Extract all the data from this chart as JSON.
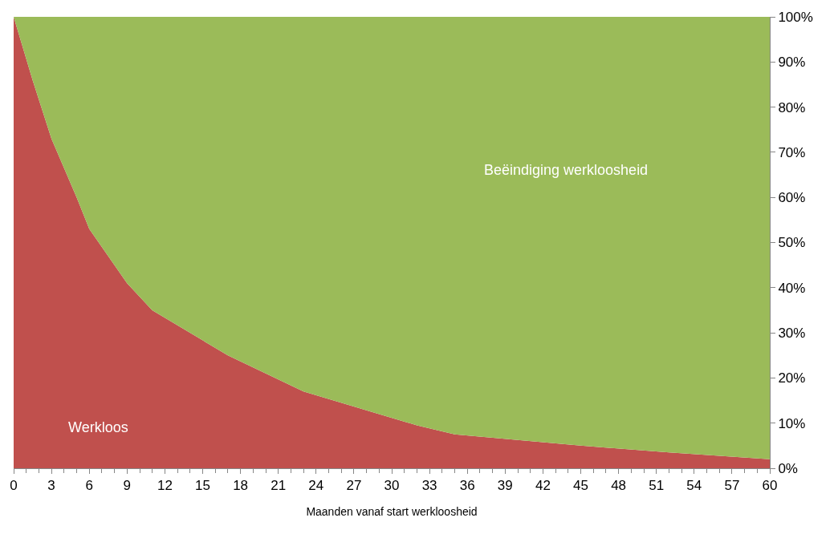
{
  "chart_data": {
    "type": "area",
    "stacked": true,
    "xlabel": "Maanden vanaf start werkloosheid",
    "x": [
      0,
      1.5,
      3,
      5,
      6,
      9,
      11,
      17,
      20,
      23,
      29,
      32,
      35,
      45,
      52,
      60
    ],
    "series": [
      {
        "name": "Werkloos",
        "color": "#c0504d",
        "values": [
          100,
          86,
          73,
          60,
          53,
          41,
          35,
          25,
          21,
          17,
          12,
          9.5,
          7.5,
          5,
          3.5,
          2
        ]
      },
      {
        "name": "Beëindiging werkloosheid",
        "color": "#9bbb59",
        "values": [
          0,
          14,
          27,
          40,
          47,
          59,
          65,
          75,
          79,
          83,
          88,
          90.5,
          92.5,
          95,
          96.5,
          98
        ]
      }
    ],
    "xlim": [
      0,
      60
    ],
    "xticks": [
      0,
      3,
      6,
      9,
      12,
      15,
      18,
      21,
      24,
      27,
      30,
      33,
      36,
      39,
      42,
      45,
      48,
      51,
      54,
      57,
      60
    ],
    "ylim": [
      0,
      100
    ],
    "yticks": [
      {
        "value": 0,
        "label": "0%"
      },
      {
        "value": 10,
        "label": "10%"
      },
      {
        "value": 20,
        "label": "20%"
      },
      {
        "value": 30,
        "label": "30%"
      },
      {
        "value": 40,
        "label": "40%"
      },
      {
        "value": 50,
        "label": "50%"
      },
      {
        "value": 60,
        "label": "60%"
      },
      {
        "value": 70,
        "label": "70%"
      },
      {
        "value": 80,
        "label": "80%"
      },
      {
        "value": 90,
        "label": "90%"
      },
      {
        "value": 100,
        "label": "100%"
      }
    ],
    "legend": false
  }
}
